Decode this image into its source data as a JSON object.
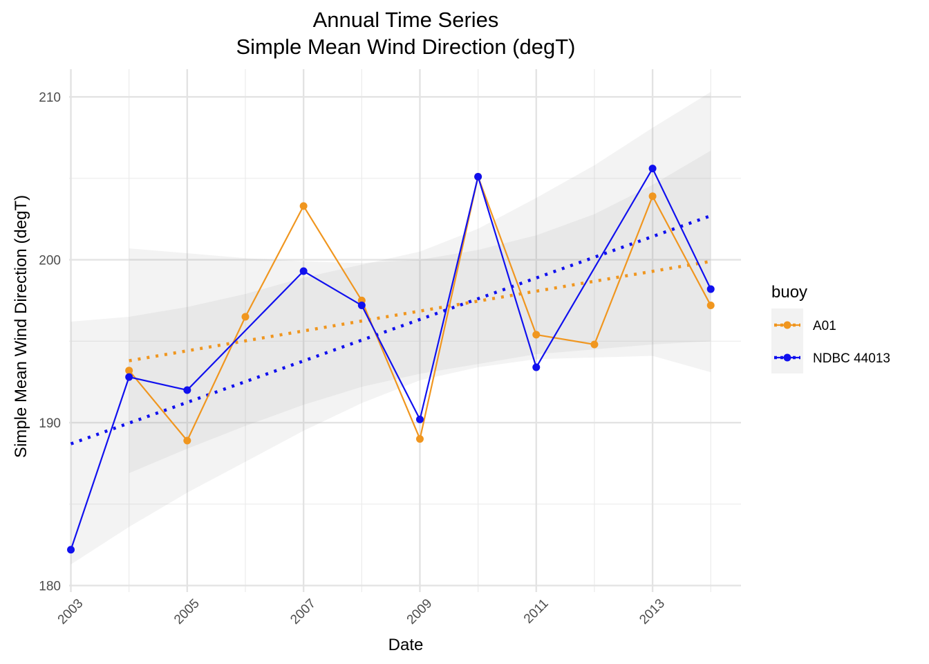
{
  "chart_data": {
    "type": "line",
    "title_line1": "Annual Time Series",
    "title_line2": "Simple Mean Wind Direction (degT)",
    "xlabel": "Date",
    "ylabel": "Simple Mean Wind Direction (degT)",
    "xlim": [
      2002.97,
      2014.52
    ],
    "ylim": [
      179.6,
      211.7
    ],
    "x_ticks": [
      2003,
      2005,
      2007,
      2009,
      2011,
      2013
    ],
    "x_tick_labels": [
      "2003",
      "2005",
      "2007",
      "2009",
      "2011",
      "2013"
    ],
    "x_minor_grid": [
      2004,
      2006,
      2008,
      2010,
      2012,
      2014
    ],
    "y_ticks": [
      180,
      190,
      200,
      210
    ],
    "y_tick_labels": [
      "180",
      "190",
      "200",
      "210"
    ],
    "y_minor_grid": [
      185,
      195,
      205
    ],
    "grid": true,
    "legend": {
      "title": "buoy",
      "position": "right"
    },
    "series": [
      {
        "name": "A01",
        "color": "#F0961F",
        "x": [
          2004,
          2005,
          2006,
          2007,
          2008,
          2009,
          2010,
          2011,
          2012,
          2013,
          2014
        ],
        "values": [
          193.2,
          188.9,
          196.5,
          203.3,
          197.5,
          189.0,
          205.1,
          195.4,
          194.8,
          203.9,
          197.2
        ],
        "trend": {
          "x": [
            2004,
            2014
          ],
          "values": [
            193.8,
            199.9
          ]
        },
        "ribbon": {
          "x": [
            2004,
            2005,
            2006,
            2007,
            2008,
            2009,
            2010,
            2011,
            2012,
            2013,
            2014
          ],
          "upper": [
            200.7,
            200.4,
            200.1,
            199.9,
            199.8,
            200.0,
            200.6,
            201.5,
            202.8,
            204.6,
            206.7
          ],
          "lower": [
            186.9,
            188.4,
            189.8,
            191.1,
            192.2,
            193.0,
            193.6,
            194.2,
            194.5,
            194.8,
            195.0
          ]
        }
      },
      {
        "name": "NDBC 44013",
        "color": "#1010EE",
        "x": [
          2003,
          2004,
          2005,
          2007,
          2008,
          2009,
          2010,
          2011,
          2013,
          2014
        ],
        "values": [
          182.2,
          192.8,
          192.0,
          199.3,
          197.2,
          190.2,
          205.1,
          193.4,
          205.6,
          198.2
        ],
        "trend": {
          "x": [
            2003,
            2014
          ],
          "values": [
            188.7,
            202.7
          ]
        },
        "ribbon": {
          "x": [
            2003,
            2004,
            2005,
            2006,
            2007,
            2008,
            2009,
            2010,
            2011,
            2012,
            2013,
            2014
          ],
          "upper": [
            196.2,
            196.5,
            197.1,
            197.9,
            198.9,
            199.7,
            200.5,
            201.9,
            203.8,
            205.8,
            208.1,
            210.3
          ],
          "lower": [
            181.3,
            183.6,
            185.7,
            187.6,
            189.5,
            191.2,
            192.6,
            193.4,
            193.9,
            194.0,
            194.1,
            193.1
          ]
        }
      }
    ]
  }
}
